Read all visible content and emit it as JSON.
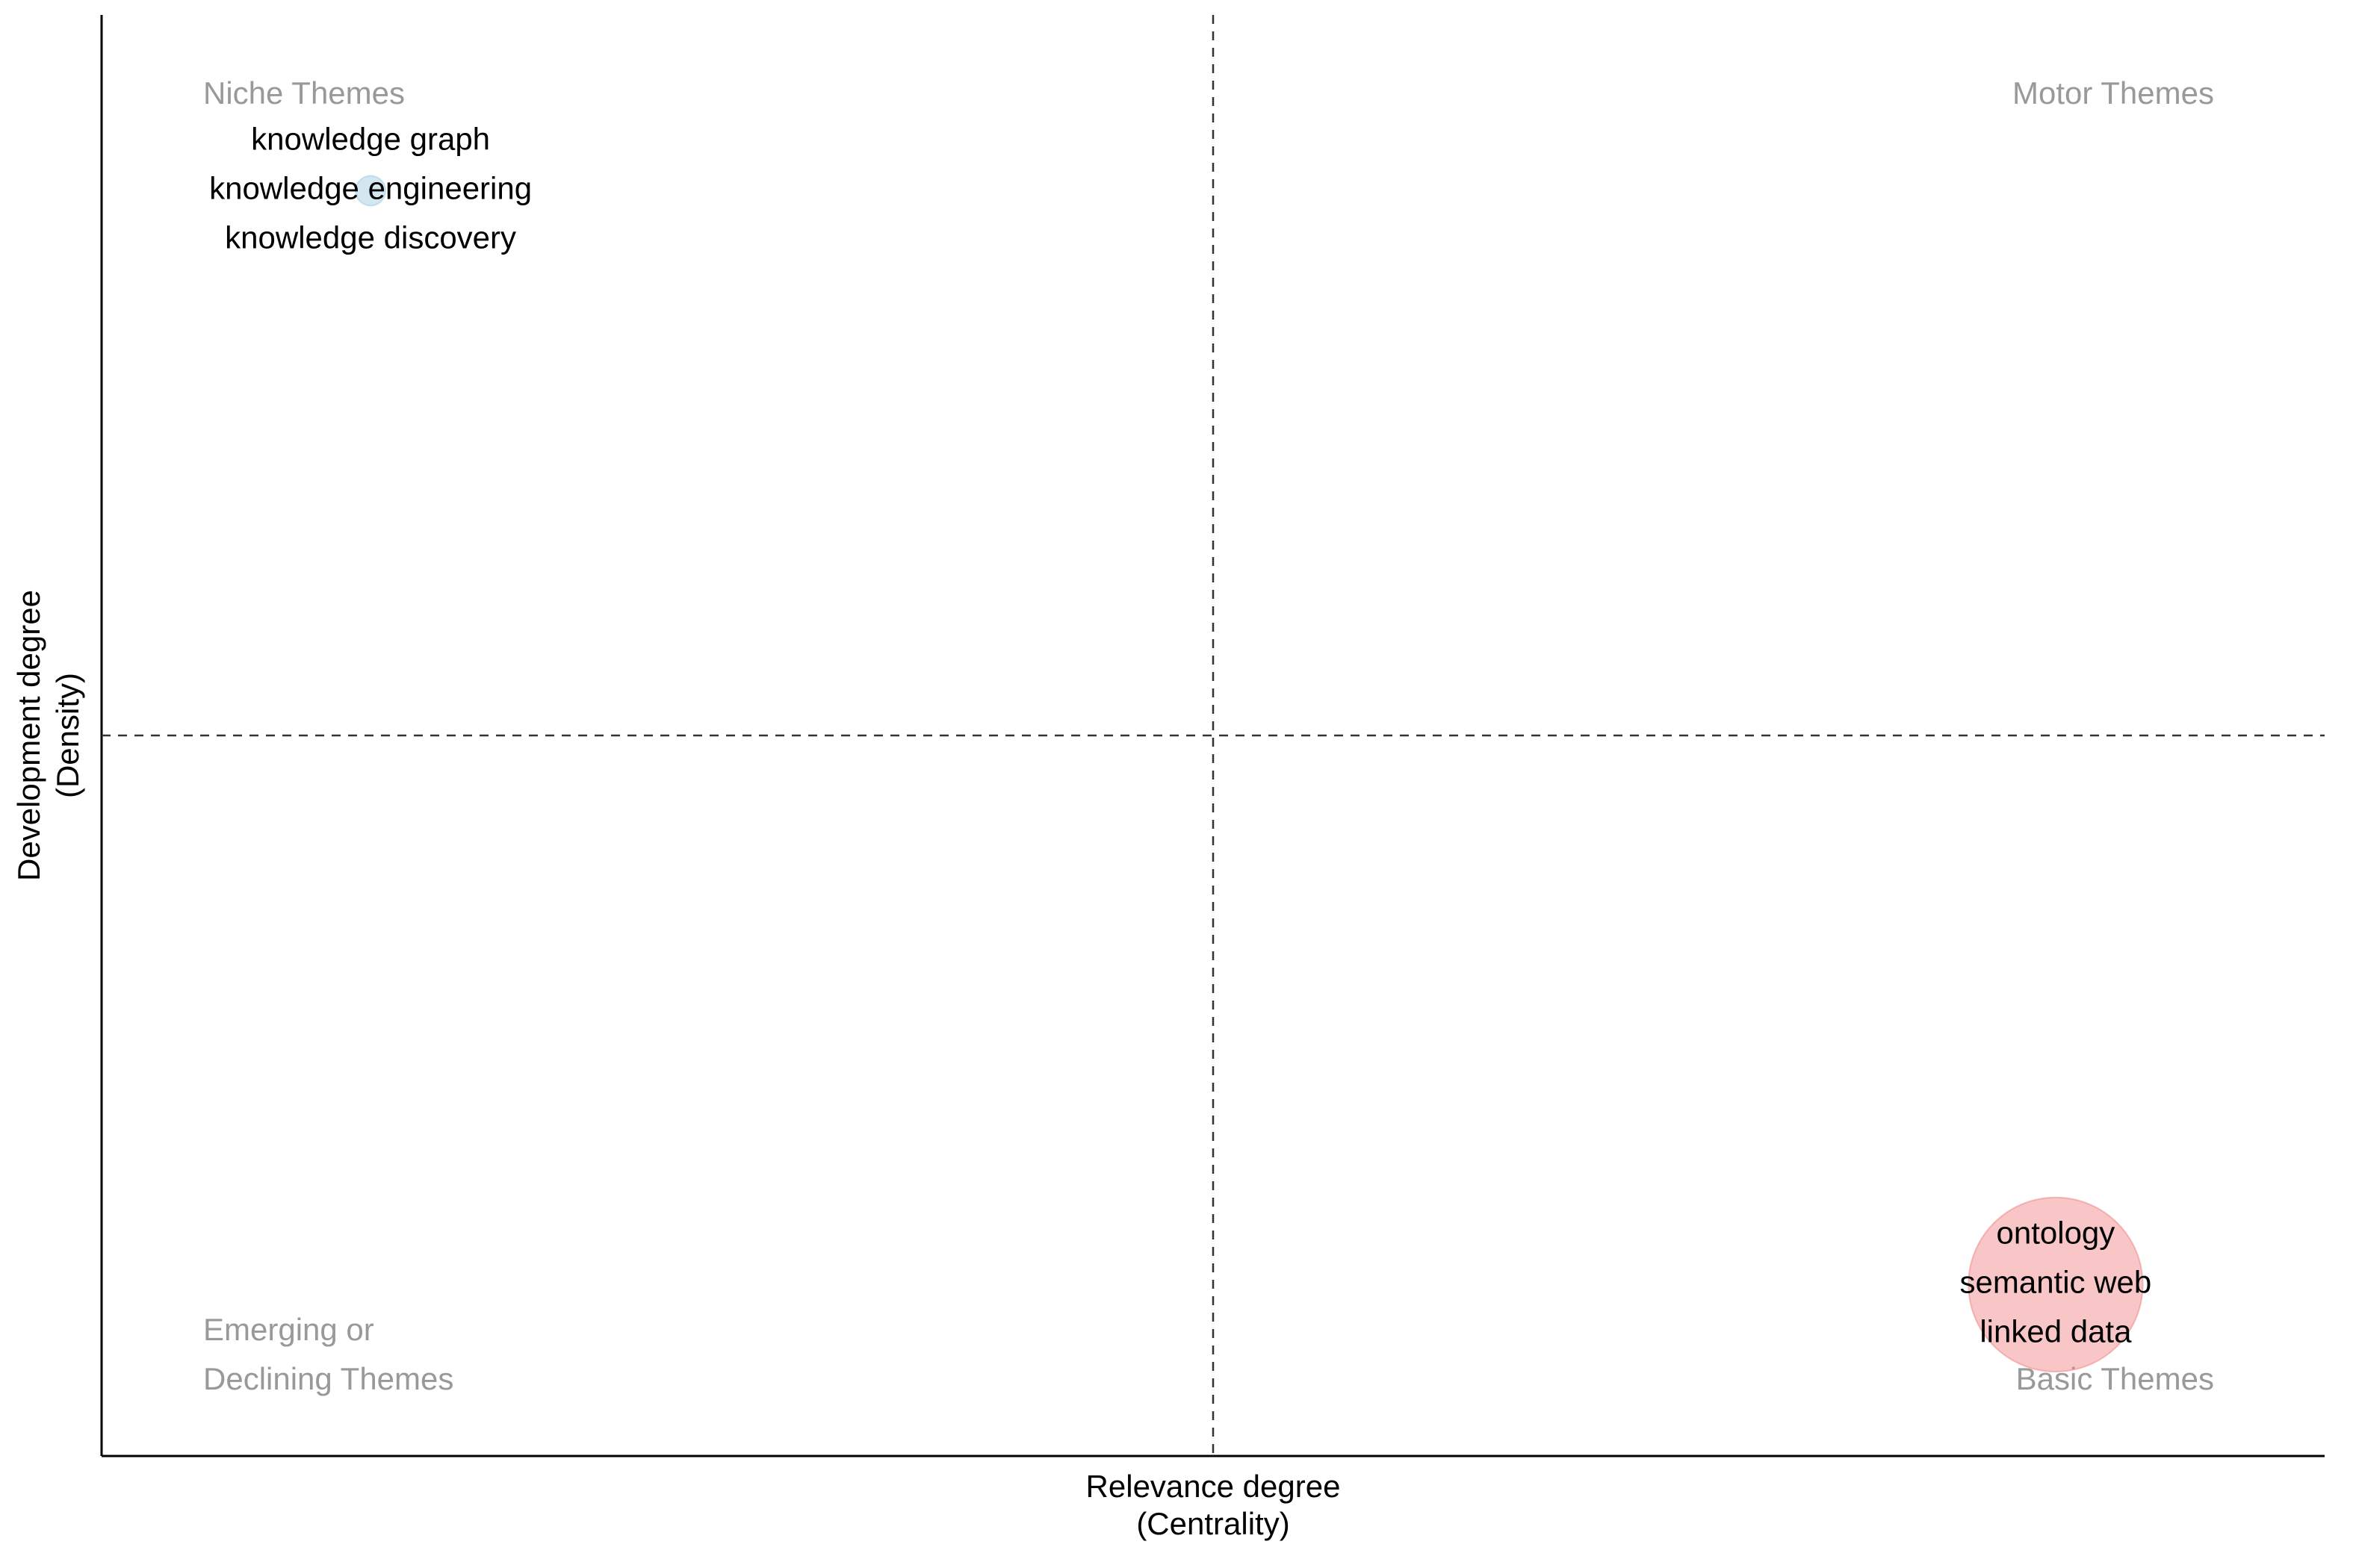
{
  "chart_data": {
    "type": "bubble",
    "x_label": [
      "Relevance degree",
      "(Centrality)"
    ],
    "y_label": [
      "Development degree",
      "(Density)"
    ],
    "quadrant_labels": {
      "top_left": [
        "Niche Themes"
      ],
      "top_right": [
        "Motor Themes"
      ],
      "bottom_left": [
        "Emerging or",
        "Declining Themes"
      ],
      "bottom_right": [
        "Basic Themes"
      ]
    },
    "xlim": [
      0,
      1
    ],
    "ylim": [
      0,
      1
    ],
    "xline": 0.5,
    "yline": 0.5,
    "points": [
      {
        "labels": [
          "knowledge graph",
          "knowledge engineering",
          "knowledge discovery"
        ],
        "x": 0.121,
        "y": 0.878,
        "size": 1,
        "color": "#9ecae1"
      },
      {
        "labels": [
          "ontology",
          "semantic web",
          "linked data"
        ],
        "x": 0.879,
        "y": 0.119,
        "size": 34,
        "color": "#f08080"
      }
    ]
  }
}
